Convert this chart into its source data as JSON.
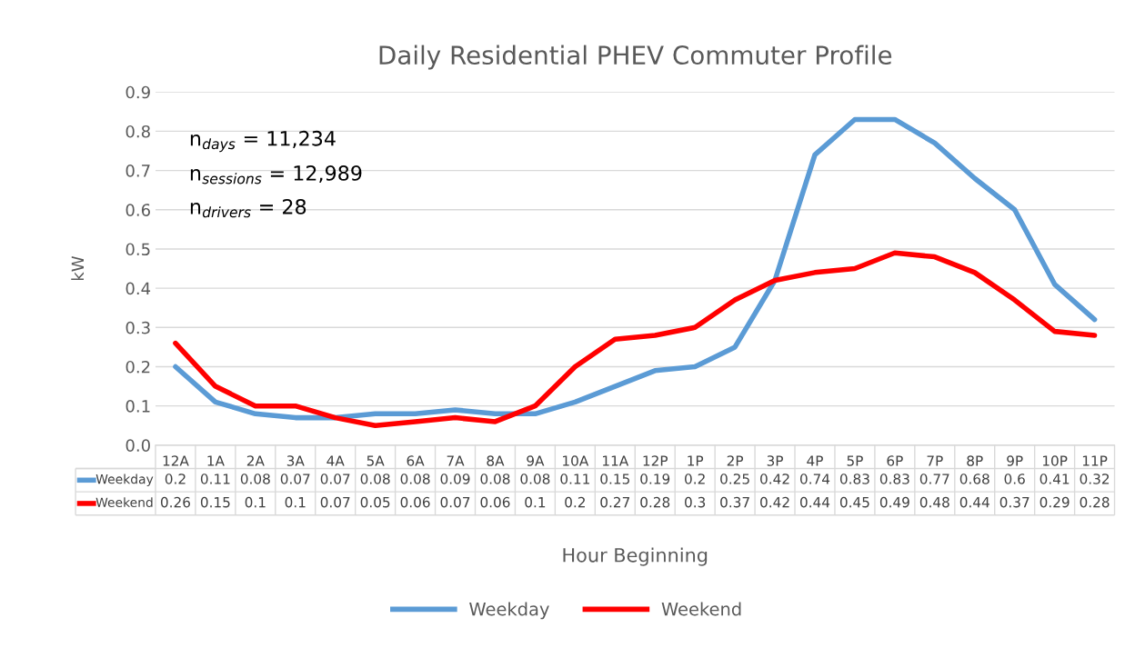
{
  "chart_data": {
    "type": "line",
    "title": "Daily Residential PHEV Commuter Profile",
    "xlabel": "Hour Beginning",
    "ylabel": "kW",
    "categories": [
      "12A",
      "1A",
      "2A",
      "3A",
      "4A",
      "5A",
      "6A",
      "7A",
      "8A",
      "9A",
      "10A",
      "11A",
      "12P",
      "1P",
      "2P",
      "3P",
      "4P",
      "5P",
      "6P",
      "7P",
      "8P",
      "9P",
      "10P",
      "11P"
    ],
    "series": [
      {
        "name": "Weekday",
        "color": "#5b9bd5",
        "values": [
          0.2,
          0.11,
          0.08,
          0.07,
          0.07,
          0.08,
          0.08,
          0.09,
          0.08,
          0.08,
          0.11,
          0.15,
          0.19,
          0.2,
          0.25,
          0.42,
          0.74,
          0.83,
          0.83,
          0.77,
          0.68,
          0.6,
          0.41,
          0.32
        ]
      },
      {
        "name": "Weekend",
        "color": "#ff0000",
        "values": [
          0.26,
          0.15,
          0.1,
          0.1,
          0.07,
          0.05,
          0.06,
          0.07,
          0.06,
          0.1,
          0.2,
          0.27,
          0.28,
          0.3,
          0.37,
          0.42,
          0.44,
          0.45,
          0.49,
          0.48,
          0.44,
          0.37,
          0.29,
          0.28
        ]
      }
    ],
    "ylim": [
      0,
      0.9
    ],
    "yticks": [
      {
        "value": 0,
        "label": "0.0"
      },
      0.1,
      0.2,
      0.3,
      0.4,
      0.5,
      0.6,
      0.7,
      0.8,
      0.9
    ],
    "annotations": [
      "n$_{days}$ = 11,234",
      "n$_{sessions}$ = 12,989",
      "n$_{drivers}$ = 28"
    ],
    "data_labels": true,
    "grid": "y",
    "legend": "bottom",
    "line_style": "solid",
    "marker": "none"
  }
}
